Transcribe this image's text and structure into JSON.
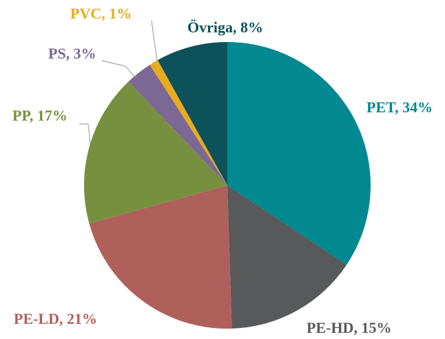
{
  "chart_data": {
    "type": "pie",
    "values": [
      34,
      15,
      21,
      17,
      3,
      1,
      8
    ],
    "value_labels": [
      "PET, 34%",
      "PE-HD, 15%",
      "PE-LD, 21%",
      "PP, 17%",
      "PS, 3%",
      "PVC, 1%",
      "Övriga, 8%"
    ],
    "colors": [
      "#028891",
      "#58595b",
      "#b0605a",
      "#77903f",
      "#7c6894",
      "#e9aa1c",
      "#0d525a"
    ]
  }
}
